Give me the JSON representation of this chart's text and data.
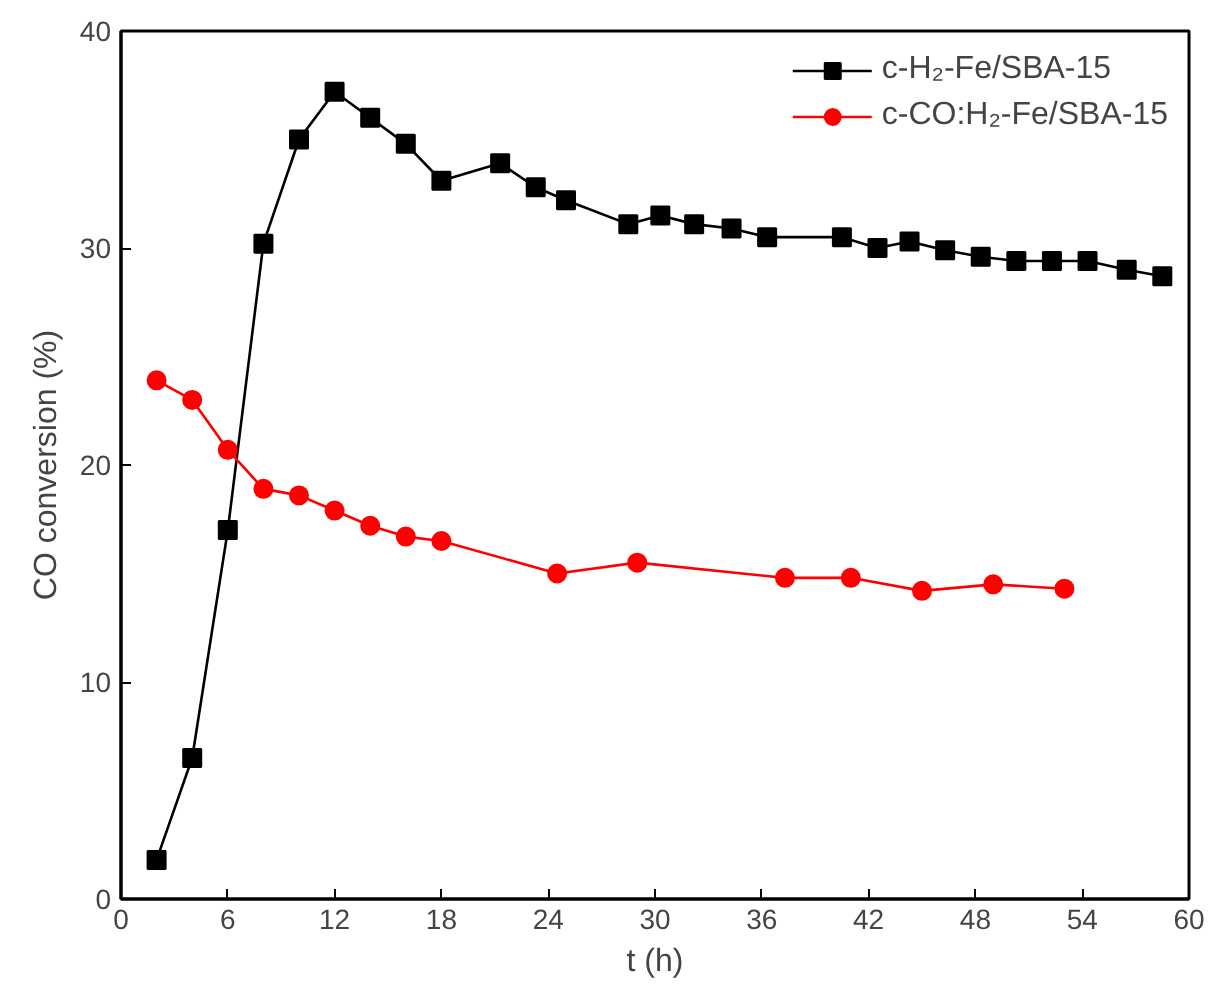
{
  "chart_data": {
    "type": "line",
    "xlabel": "t (h)",
    "ylabel": "CO conversion (%)",
    "xlim": [
      0,
      60
    ],
    "xticks": [
      0,
      6,
      12,
      18,
      24,
      30,
      36,
      42,
      48,
      54,
      60
    ],
    "ylim": [
      0,
      40
    ],
    "yticks": [
      0,
      10,
      20,
      30,
      40
    ],
    "grid": false,
    "legend": "top right",
    "series": [
      {
        "name": "c-H₂-Fe/SBA-15",
        "color": "#000000",
        "marker": "square",
        "x": [
          2,
          4,
          6,
          8,
          10,
          12,
          14,
          16,
          18,
          21.3,
          23.3,
          25,
          28.5,
          30.3,
          32.2,
          34.3,
          36.3,
          40.5,
          42.5,
          44.3,
          46.3,
          48.3,
          50.3,
          52.3,
          54.3,
          56.5,
          58.5
        ],
        "values": [
          1.8,
          6.5,
          17,
          30.2,
          35,
          37.2,
          36,
          34.8,
          33.1,
          33.9,
          32.8,
          32.2,
          31.1,
          31.5,
          31.1,
          30.9,
          30.5,
          30.5,
          30.0,
          30.3,
          29.9,
          29.6,
          29.4,
          29.4,
          29.4,
          29.0,
          28.7
        ]
      },
      {
        "name": "c-CO:H₂-Fe/SBA-15",
        "color": "#ff0000",
        "marker": "circle",
        "x": [
          2,
          4,
          6,
          8,
          10,
          12,
          14,
          16,
          18,
          24.5,
          29,
          37.3,
          41,
          45,
          49,
          53
        ],
        "values": [
          23.9,
          23.0,
          20.7,
          18.9,
          18.6,
          17.9,
          17.2,
          16.7,
          16.5,
          15.0,
          15.5,
          14.8,
          14.8,
          14.2,
          14.5,
          14.3
        ]
      }
    ]
  }
}
